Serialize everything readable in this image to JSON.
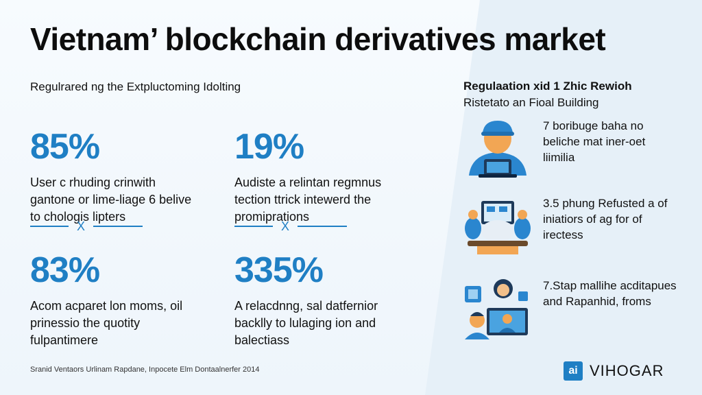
{
  "title": "Vietnam’ blockchain derivatives market",
  "left_subtitle": "Regulrared ng the Extpluctoming Idolting",
  "stats": [
    {
      "value": "85%",
      "desc": "User c rhuding crinwith gantone or lime-liage 6 belive to chologis lipters"
    },
    {
      "value": "19%",
      "desc": "Audiste a relintan regmnus tection ttrick intewerd the promiprations"
    },
    {
      "value": "83%",
      "desc": "Acom acparet lon moms, oil prinessio the quotity fulpantimere"
    },
    {
      "value": "335%",
      "desc": "A relacdnng, sal datfernior backlly to lulaging ion and balectiass"
    }
  ],
  "divider_mark": "X",
  "right": {
    "heading": "Regulaation xid 1 Zhic Rewioh",
    "subheading": "Ristetato an Fioal Building",
    "items": [
      {
        "text": "7 boribuge baha no beliche mat iner-oet liimilia",
        "icon": "person-with-laptop-icon"
      },
      {
        "text": "3.5 phung Refusted a of iniatiors of ag for of irectess",
        "icon": "people-at-monitor-icon"
      },
      {
        "text": "7.Stap mallihe acditapues and Rapanhid, froms",
        "icon": "video-call-icon"
      }
    ]
  },
  "footer": "Sranid Ventaors Urlinam Rapdane, Inpocete Elm Dontaalnerfer 2014",
  "brand": {
    "logo": "ai",
    "name": "VIHOGAR"
  },
  "colors": {
    "accent": "#1f7fc4",
    "background": "#f3f8fc"
  }
}
